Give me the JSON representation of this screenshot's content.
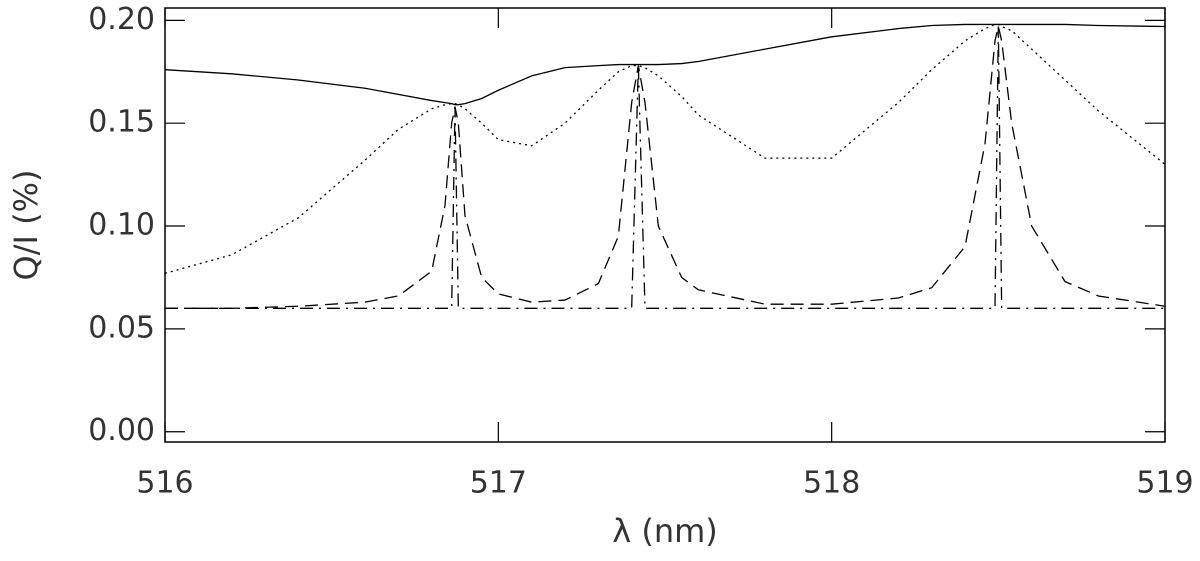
{
  "chart_data": {
    "type": "line",
    "x_label": "λ (nm)",
    "y_label": "Q/I (%)",
    "xlim": [
      516,
      519
    ],
    "ylim": [
      -0.005,
      0.206
    ],
    "xticks": [
      516,
      517,
      518,
      519
    ],
    "yticks": [
      {
        "value": 0,
        "label": "0.00"
      },
      0.05,
      {
        "value": 0.1,
        "label": "0.10"
      },
      0.15,
      {
        "value": 0.2,
        "label": "0.20"
      }
    ],
    "x": [
      516.0,
      516.2,
      516.4,
      516.6,
      516.7,
      516.8,
      516.84,
      516.86,
      516.87,
      516.88,
      516.9,
      516.95,
      517.0,
      517.1,
      517.2,
      517.3,
      517.36,
      517.4,
      517.42,
      517.44,
      517.48,
      517.55,
      517.6,
      517.8,
      518.0,
      518.2,
      518.3,
      518.4,
      518.46,
      518.49,
      518.5,
      518.51,
      518.54,
      518.6,
      518.7,
      518.8,
      519.0
    ],
    "series": [
      {
        "color": "#000000",
        "dash": "solid",
        "values": [
          0.176,
          0.174,
          0.171,
          0.167,
          0.164,
          0.161,
          0.16,
          0.1595,
          0.159,
          0.159,
          0.1595,
          0.162,
          0.166,
          0.173,
          0.177,
          0.178,
          0.1785,
          0.1785,
          0.1785,
          0.1785,
          0.1785,
          0.179,
          0.18,
          0.186,
          0.192,
          0.196,
          0.1975,
          0.198,
          0.198,
          0.198,
          0.198,
          0.198,
          0.198,
          0.198,
          0.198,
          0.1975,
          0.197
        ]
      },
      {
        "color": "#000000",
        "dash": "dotted",
        "values": [
          0.077,
          0.086,
          0.104,
          0.132,
          0.147,
          0.157,
          0.159,
          0.1595,
          0.1595,
          0.159,
          0.157,
          0.15,
          0.142,
          0.139,
          0.15,
          0.166,
          0.175,
          0.178,
          0.178,
          0.177,
          0.173,
          0.163,
          0.154,
          0.133,
          0.133,
          0.16,
          0.176,
          0.19,
          0.196,
          0.198,
          0.198,
          0.197,
          0.195,
          0.186,
          0.171,
          0.156,
          0.13
        ]
      },
      {
        "color": "#000000",
        "dash": "dashed",
        "values": [
          0.06,
          0.06,
          0.061,
          0.063,
          0.066,
          0.078,
          0.11,
          0.15,
          0.158,
          0.15,
          0.105,
          0.075,
          0.067,
          0.063,
          0.064,
          0.072,
          0.095,
          0.16,
          0.178,
          0.16,
          0.1,
          0.075,
          0.069,
          0.062,
          0.062,
          0.065,
          0.07,
          0.09,
          0.14,
          0.19,
          0.197,
          0.19,
          0.15,
          0.1,
          0.073,
          0.066,
          0.061
        ]
      },
      {
        "color": "#000000",
        "dash": "dashdot",
        "values": [
          0.06,
          0.06,
          0.06,
          0.06,
          0.06,
          0.06,
          0.06,
          0.06,
          0.158,
          0.06,
          0.06,
          0.06,
          0.06,
          0.06,
          0.06,
          0.06,
          0.06,
          0.06,
          0.178,
          0.06,
          0.06,
          0.06,
          0.06,
          0.06,
          0.06,
          0.06,
          0.06,
          0.06,
          0.06,
          0.06,
          0.197,
          0.06,
          0.06,
          0.06,
          0.06,
          0.06,
          0.06
        ]
      }
    ]
  }
}
